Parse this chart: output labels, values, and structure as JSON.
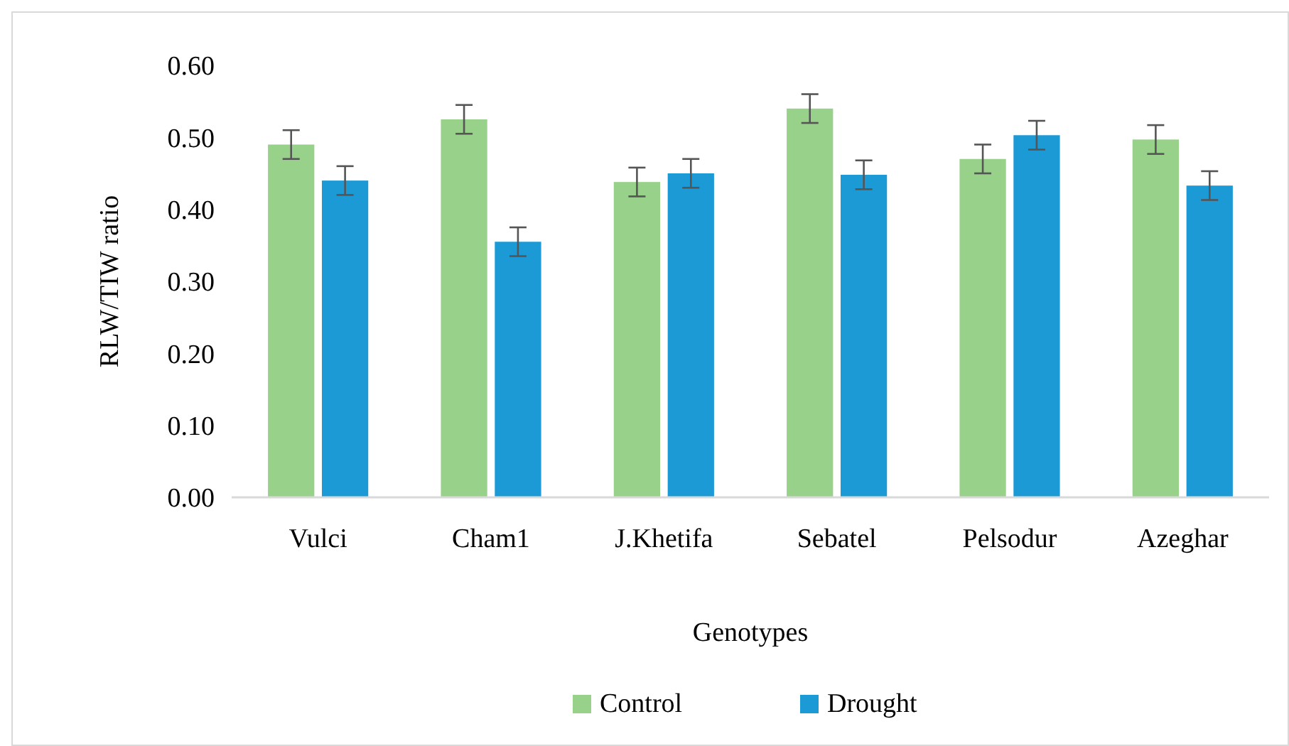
{
  "chart_data": {
    "type": "bar",
    "xlabel": "Genotypes",
    "ylabel": "RLW/TIW ratio",
    "categories": [
      "Vulci",
      "Cham1",
      "J.Khetifa",
      "Sebatel",
      "Pelsodur",
      "Azeghar"
    ],
    "series": [
      {
        "name": "Control",
        "color": "#98d18a",
        "values": [
          0.49,
          0.525,
          0.438,
          0.54,
          0.47,
          0.497
        ],
        "errors": [
          0.02,
          0.02,
          0.02,
          0.02,
          0.02,
          0.02
        ]
      },
      {
        "name": "Drought",
        "color": "#1c9ad6",
        "values": [
          0.44,
          0.355,
          0.45,
          0.448,
          0.503,
          0.433
        ],
        "errors": [
          0.02,
          0.02,
          0.02,
          0.02,
          0.02,
          0.02
        ]
      }
    ],
    "ylim": [
      0,
      0.6
    ],
    "yticks": [
      {
        "value": 0,
        "label": "0.00"
      },
      {
        "value": 0.1,
        "label": "0.10"
      },
      {
        "value": 0.2,
        "label": "0.20"
      },
      {
        "value": 0.3,
        "label": "0.30"
      },
      {
        "value": 0.4,
        "label": "0.40"
      },
      {
        "value": 0.5,
        "label": "0.50"
      },
      {
        "value": 0.6,
        "label": "0.60"
      }
    ],
    "grid": false,
    "legend": "bottom"
  }
}
